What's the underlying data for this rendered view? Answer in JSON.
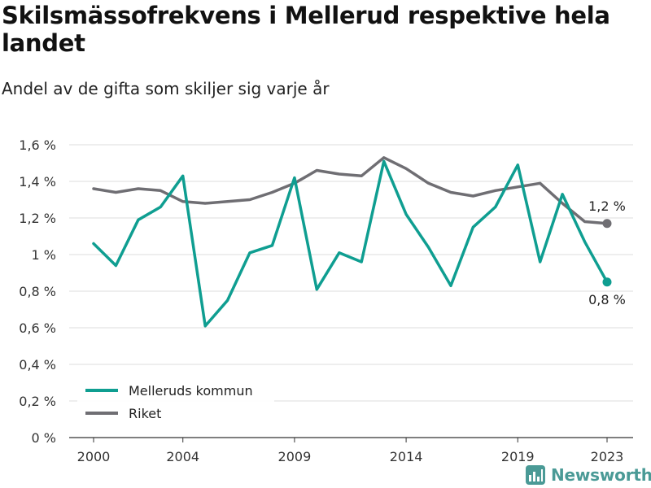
{
  "header": {
    "title": "Skilsmässofrekvens i Mellerud respektive hela landet",
    "subtitle": "Andel av de gifta som skiljer sig varje år"
  },
  "brand": {
    "name": "Newsworthy"
  },
  "chart_data": {
    "type": "line",
    "x": [
      2000,
      2001,
      2002,
      2003,
      2004,
      2005,
      2006,
      2007,
      2008,
      2009,
      2010,
      2011,
      2012,
      2013,
      2014,
      2015,
      2016,
      2017,
      2018,
      2019,
      2020,
      2021,
      2022,
      2023
    ],
    "series": [
      {
        "name": "Melleruds kommun",
        "color": "#0f9e91",
        "values": [
          1.06,
          0.94,
          1.19,
          1.26,
          1.43,
          0.61,
          0.75,
          1.01,
          1.05,
          1.42,
          0.81,
          1.01,
          0.96,
          1.51,
          1.22,
          1.04,
          0.83,
          1.15,
          1.26,
          1.49,
          0.96,
          1.33,
          1.07,
          0.85
        ],
        "end_label": "0,8 %"
      },
      {
        "name": "Riket",
        "color": "#6f6e73",
        "values": [
          1.36,
          1.34,
          1.36,
          1.35,
          1.29,
          1.28,
          1.29,
          1.3,
          1.34,
          1.39,
          1.46,
          1.44,
          1.43,
          1.53,
          1.47,
          1.39,
          1.34,
          1.32,
          1.35,
          1.37,
          1.39,
          1.28,
          1.18,
          1.17
        ],
        "end_label": "1,2 %"
      }
    ],
    "x_ticks": [
      2000,
      2004,
      2009,
      2014,
      2019,
      2023
    ],
    "x_tick_labels": [
      "2000",
      "2004",
      "2009",
      "2014",
      "2019",
      "2023"
    ],
    "y_ticks": [
      0,
      0.2,
      0.4,
      0.6,
      0.8,
      1.0,
      1.2,
      1.4,
      1.6
    ],
    "y_tick_labels": [
      "0 %",
      "0,2 %",
      "0,4 %",
      "0,6 %",
      "0,8 %",
      "1 %",
      "1,2 %",
      "1,4 %",
      "1,6 %"
    ],
    "xlim": [
      2000,
      2023
    ],
    "ylim": [
      0,
      1.6
    ],
    "grid": "horizontal",
    "legend_position": "bottom-left"
  }
}
